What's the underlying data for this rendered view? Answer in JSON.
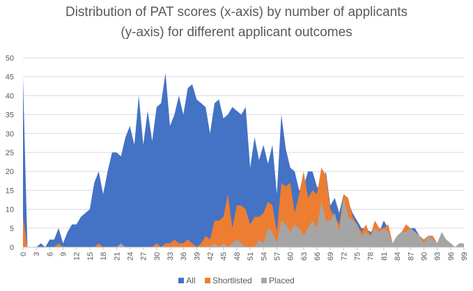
{
  "chart_data": {
    "type": "area",
    "title_line1": "Distribution of PAT scores (x-axis) by number of applicants",
    "title_line2": "(y-axis) for different applicant outcomes",
    "xlabel": "",
    "ylabel": "",
    "xlim": [
      0,
      100
    ],
    "ylim": [
      0,
      50
    ],
    "y_ticks": [
      0,
      5,
      10,
      15,
      20,
      25,
      30,
      35,
      40,
      45,
      50
    ],
    "x_ticks": [
      0,
      3,
      6,
      9,
      12,
      15,
      18,
      21,
      24,
      27,
      30,
      33,
      36,
      39,
      42,
      45,
      48,
      51,
      54,
      57,
      60,
      63,
      66,
      69,
      72,
      75,
      78,
      81,
      84,
      87,
      90,
      93,
      96,
      99
    ],
    "grid": true,
    "legend_position": "bottom",
    "series": [
      {
        "name": "All",
        "color": "#4472C4",
        "points": [
          [
            0,
            45
          ],
          [
            1,
            0
          ],
          [
            2,
            0
          ],
          [
            3,
            0
          ],
          [
            4,
            1
          ],
          [
            5,
            0
          ],
          [
            6,
            2
          ],
          [
            7,
            2
          ],
          [
            8,
            5
          ],
          [
            9,
            1
          ],
          [
            10,
            4
          ],
          [
            11,
            6
          ],
          [
            12,
            6
          ],
          [
            13,
            8
          ],
          [
            14,
            9
          ],
          [
            15,
            10
          ],
          [
            16,
            17
          ],
          [
            17,
            20
          ],
          [
            18,
            14
          ],
          [
            19,
            20
          ],
          [
            20,
            25
          ],
          [
            21,
            25
          ],
          [
            22,
            24
          ],
          [
            23,
            29
          ],
          [
            24,
            32
          ],
          [
            25,
            27
          ],
          [
            26,
            40
          ],
          [
            27,
            27
          ],
          [
            28,
            36
          ],
          [
            29,
            28
          ],
          [
            30,
            37
          ],
          [
            31,
            38
          ],
          [
            32,
            46
          ],
          [
            33,
            32
          ],
          [
            34,
            35
          ],
          [
            35,
            40
          ],
          [
            36,
            35
          ],
          [
            37,
            42
          ],
          [
            38,
            43
          ],
          [
            39,
            39
          ],
          [
            40,
            38
          ],
          [
            41,
            37
          ],
          [
            42,
            30
          ],
          [
            43,
            38
          ],
          [
            44,
            39
          ],
          [
            45,
            34
          ],
          [
            46,
            35
          ],
          [
            47,
            37
          ],
          [
            48,
            36
          ],
          [
            49,
            35
          ],
          [
            50,
            37
          ],
          [
            51,
            21
          ],
          [
            52,
            29
          ],
          [
            53,
            23
          ],
          [
            54,
            27
          ],
          [
            55,
            22
          ],
          [
            56,
            27
          ],
          [
            57,
            14
          ],
          [
            58,
            35
          ],
          [
            59,
            26
          ],
          [
            60,
            21
          ],
          [
            61,
            20
          ],
          [
            62,
            15
          ],
          [
            63,
            16
          ],
          [
            64,
            20
          ],
          [
            65,
            20
          ],
          [
            66,
            16
          ],
          [
            67,
            15
          ],
          [
            68,
            20
          ],
          [
            69,
            11
          ],
          [
            70,
            13
          ],
          [
            71,
            9
          ],
          [
            72,
            14
          ],
          [
            73,
            12
          ],
          [
            74,
            9
          ],
          [
            75,
            7
          ],
          [
            76,
            5
          ],
          [
            77,
            5
          ],
          [
            78,
            4
          ],
          [
            79,
            5
          ],
          [
            80,
            4
          ],
          [
            81,
            7
          ],
          [
            82,
            5
          ],
          [
            83,
            1
          ],
          [
            84,
            3
          ],
          [
            85,
            4
          ],
          [
            86,
            5
          ],
          [
            87,
            5
          ],
          [
            88,
            5
          ],
          [
            89,
            3
          ],
          [
            90,
            2
          ],
          [
            91,
            3
          ],
          [
            92,
            2
          ],
          [
            93,
            1
          ],
          [
            94,
            3
          ],
          [
            95,
            2
          ],
          [
            96,
            1
          ],
          [
            97,
            0
          ],
          [
            98,
            1
          ],
          [
            99,
            1
          ]
        ]
      },
      {
        "name": "Shortlisted",
        "color": "#ED7D31",
        "points": [
          [
            0,
            8
          ],
          [
            1,
            0
          ],
          [
            2,
            0
          ],
          [
            3,
            0
          ],
          [
            4,
            0
          ],
          [
            5,
            0
          ],
          [
            6,
            0
          ],
          [
            7,
            0
          ],
          [
            8,
            1
          ],
          [
            9,
            0
          ],
          [
            10,
            0
          ],
          [
            11,
            0
          ],
          [
            12,
            0
          ],
          [
            13,
            0
          ],
          [
            14,
            0
          ],
          [
            15,
            0
          ],
          [
            16,
            0
          ],
          [
            17,
            1
          ],
          [
            18,
            0
          ],
          [
            19,
            0
          ],
          [
            20,
            0
          ],
          [
            21,
            0
          ],
          [
            22,
            0
          ],
          [
            23,
            0
          ],
          [
            24,
            0
          ],
          [
            25,
            0
          ],
          [
            26,
            0
          ],
          [
            27,
            0
          ],
          [
            28,
            0
          ],
          [
            29,
            0
          ],
          [
            30,
            1
          ],
          [
            31,
            0
          ],
          [
            32,
            1
          ],
          [
            33,
            1
          ],
          [
            34,
            2
          ],
          [
            35,
            1
          ],
          [
            36,
            1
          ],
          [
            37,
            2
          ],
          [
            38,
            1
          ],
          [
            39,
            0
          ],
          [
            40,
            1
          ],
          [
            41,
            3
          ],
          [
            42,
            2
          ],
          [
            43,
            7
          ],
          [
            44,
            7
          ],
          [
            45,
            8
          ],
          [
            46,
            14
          ],
          [
            47,
            5
          ],
          [
            48,
            11
          ],
          [
            49,
            11
          ],
          [
            50,
            10
          ],
          [
            51,
            6
          ],
          [
            52,
            8
          ],
          [
            53,
            8
          ],
          [
            54,
            9
          ],
          [
            55,
            12
          ],
          [
            56,
            11
          ],
          [
            57,
            4
          ],
          [
            58,
            17
          ],
          [
            59,
            16
          ],
          [
            60,
            17
          ],
          [
            61,
            9
          ],
          [
            62,
            14
          ],
          [
            63,
            20
          ],
          [
            64,
            13
          ],
          [
            65,
            15
          ],
          [
            66,
            14
          ],
          [
            67,
            21
          ],
          [
            68,
            19
          ],
          [
            69,
            10
          ],
          [
            70,
            8
          ],
          [
            71,
            6
          ],
          [
            72,
            14
          ],
          [
            73,
            13
          ],
          [
            74,
            8
          ],
          [
            75,
            6
          ],
          [
            76,
            4
          ],
          [
            77,
            6
          ],
          [
            78,
            3
          ],
          [
            79,
            7
          ],
          [
            80,
            5
          ],
          [
            81,
            5
          ],
          [
            82,
            6
          ],
          [
            83,
            1
          ],
          [
            84,
            3
          ],
          [
            85,
            4
          ],
          [
            86,
            6
          ],
          [
            87,
            5
          ],
          [
            88,
            4
          ],
          [
            89,
            3
          ],
          [
            90,
            2
          ],
          [
            91,
            3
          ],
          [
            92,
            3
          ],
          [
            93,
            1
          ],
          [
            94,
            3
          ],
          [
            95,
            2
          ],
          [
            96,
            1
          ],
          [
            97,
            0
          ],
          [
            98,
            1
          ],
          [
            99,
            1
          ]
        ]
      },
      {
        "name": "Placed",
        "color": "#A5A5A5",
        "points": [
          [
            0,
            0
          ],
          [
            1,
            0
          ],
          [
            2,
            0
          ],
          [
            3,
            0
          ],
          [
            4,
            0
          ],
          [
            5,
            0
          ],
          [
            6,
            0
          ],
          [
            7,
            0
          ],
          [
            8,
            0
          ],
          [
            9,
            0
          ],
          [
            10,
            0
          ],
          [
            11,
            0
          ],
          [
            12,
            0
          ],
          [
            13,
            0
          ],
          [
            14,
            0
          ],
          [
            15,
            0
          ],
          [
            16,
            0
          ],
          [
            17,
            0
          ],
          [
            18,
            0
          ],
          [
            19,
            0
          ],
          [
            20,
            0
          ],
          [
            21,
            0
          ],
          [
            22,
            1
          ],
          [
            23,
            0
          ],
          [
            24,
            0
          ],
          [
            25,
            0
          ],
          [
            26,
            0
          ],
          [
            27,
            0
          ],
          [
            28,
            0
          ],
          [
            29,
            0
          ],
          [
            30,
            0
          ],
          [
            31,
            0
          ],
          [
            32,
            0
          ],
          [
            33,
            0
          ],
          [
            34,
            0
          ],
          [
            35,
            0
          ],
          [
            36,
            0
          ],
          [
            37,
            0
          ],
          [
            38,
            0
          ],
          [
            39,
            0
          ],
          [
            40,
            0
          ],
          [
            41,
            0
          ],
          [
            42,
            0
          ],
          [
            43,
            1
          ],
          [
            44,
            0
          ],
          [
            45,
            1
          ],
          [
            46,
            0
          ],
          [
            47,
            1
          ],
          [
            48,
            2
          ],
          [
            49,
            1
          ],
          [
            50,
            0
          ],
          [
            51,
            0
          ],
          [
            52,
            0
          ],
          [
            53,
            2
          ],
          [
            54,
            1
          ],
          [
            55,
            5
          ],
          [
            56,
            4
          ],
          [
            57,
            1
          ],
          [
            58,
            7
          ],
          [
            59,
            6
          ],
          [
            60,
            4
          ],
          [
            61,
            6
          ],
          [
            62,
            5
          ],
          [
            63,
            3
          ],
          [
            64,
            5
          ],
          [
            65,
            7
          ],
          [
            66,
            5
          ],
          [
            67,
            12
          ],
          [
            68,
            7
          ],
          [
            69,
            7
          ],
          [
            70,
            9
          ],
          [
            71,
            4
          ],
          [
            72,
            13
          ],
          [
            73,
            8
          ],
          [
            74,
            7
          ],
          [
            75,
            6
          ],
          [
            76,
            3
          ],
          [
            77,
            4
          ],
          [
            78,
            3
          ],
          [
            79,
            5
          ],
          [
            80,
            4
          ],
          [
            81,
            5
          ],
          [
            82,
            4
          ],
          [
            83,
            1
          ],
          [
            84,
            3
          ],
          [
            85,
            4
          ],
          [
            86,
            4
          ],
          [
            87,
            5
          ],
          [
            88,
            4
          ],
          [
            89,
            3
          ],
          [
            90,
            1
          ],
          [
            91,
            3
          ],
          [
            92,
            2
          ],
          [
            93,
            1
          ],
          [
            94,
            4
          ],
          [
            95,
            2
          ],
          [
            96,
            1
          ],
          [
            97,
            0
          ],
          [
            98,
            1
          ],
          [
            99,
            1
          ]
        ]
      }
    ]
  }
}
